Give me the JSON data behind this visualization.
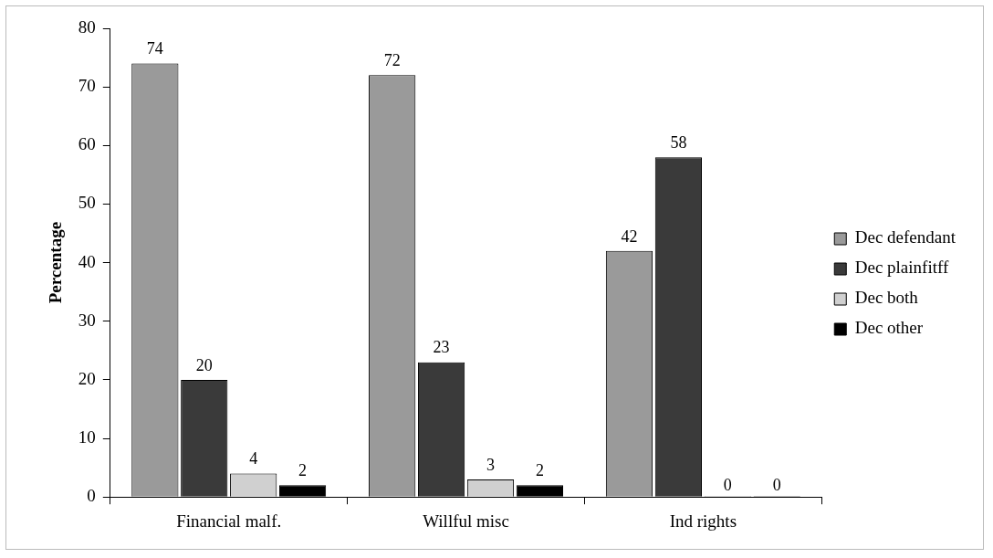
{
  "chart_data": {
    "type": "bar",
    "ylabel": "Percentage",
    "categories": [
      "Financial malf.",
      "Willful misc",
      "Ind rights"
    ],
    "series": [
      {
        "name": "Dec defendant",
        "color": "#9a9a9a",
        "values": [
          74,
          72,
          42
        ]
      },
      {
        "name": "Dec plainfitff",
        "color": "#3a3a3a",
        "values": [
          20,
          23,
          58
        ]
      },
      {
        "name": "Dec both",
        "color": "#d0d0d0",
        "values": [
          4,
          3,
          0
        ]
      },
      {
        "name": "Dec other",
        "color": "#000000",
        "values": [
          2,
          2,
          0
        ]
      }
    ],
    "ylim": [
      0,
      80
    ],
    "yticks": [
      0,
      10,
      20,
      30,
      40,
      50,
      60,
      70,
      80
    ],
    "grid": false,
    "legend": "right",
    "data_labels": true
  }
}
